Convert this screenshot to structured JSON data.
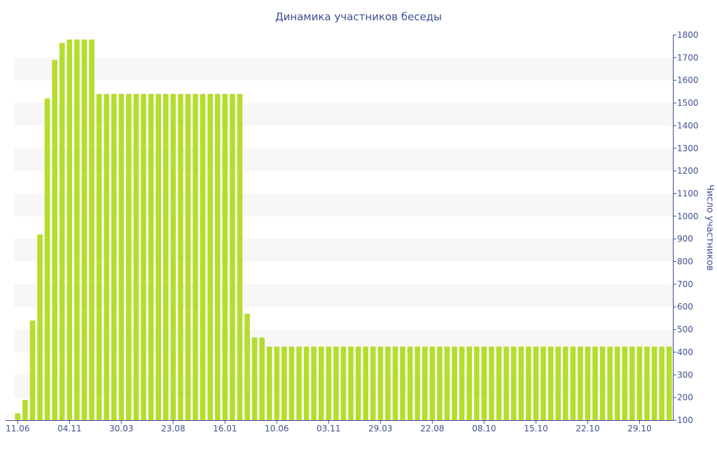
{
  "chart_data": {
    "type": "bar",
    "title": "Динамика участников беседы",
    "ylabel": "Число участников",
    "xlabel": "",
    "ylim": [
      100,
      1800
    ],
    "yticks": [
      100,
      200,
      300,
      400,
      500,
      600,
      700,
      800,
      900,
      1000,
      1100,
      1200,
      1300,
      1400,
      1500,
      1600,
      1700,
      1800
    ],
    "y_axis_side": "right",
    "grid": "alternating horizontal bands",
    "xtick_labels": [
      "11.06",
      "04.11",
      "30.03",
      "23.08",
      "16.01",
      "10.06",
      "03.11",
      "29.03",
      "22.08",
      "08.10",
      "15.10",
      "22.10",
      "29.10"
    ],
    "xtick_positions": [
      0,
      7,
      14,
      21,
      28,
      35,
      42,
      49,
      56,
      63,
      70,
      77,
      84
    ],
    "values": [
      130,
      190,
      540,
      920,
      1520,
      1690,
      1765,
      1780,
      1780,
      1780,
      1780,
      1540,
      1540,
      1540,
      1540,
      1540,
      1540,
      1540,
      1540,
      1540,
      1540,
      1540,
      1540,
      1540,
      1540,
      1540,
      1540,
      1540,
      1540,
      1540,
      1540,
      570,
      465,
      465,
      425,
      425,
      425,
      425,
      425,
      425,
      425,
      425,
      425,
      425,
      425,
      425,
      425,
      425,
      425,
      425,
      425,
      425,
      425,
      425,
      425,
      425,
      425,
      425,
      425,
      425,
      425,
      425,
      425,
      425,
      425,
      425,
      425,
      425,
      425,
      425,
      425,
      425,
      425,
      425,
      425,
      425,
      425,
      425,
      425,
      425,
      425,
      425,
      425,
      425,
      425,
      425,
      425,
      425,
      425
    ],
    "colors": {
      "bar": "#b5dd2e",
      "band": "#f7f7f7",
      "text": "#3e4f91",
      "axis": "#3e4f91"
    }
  }
}
